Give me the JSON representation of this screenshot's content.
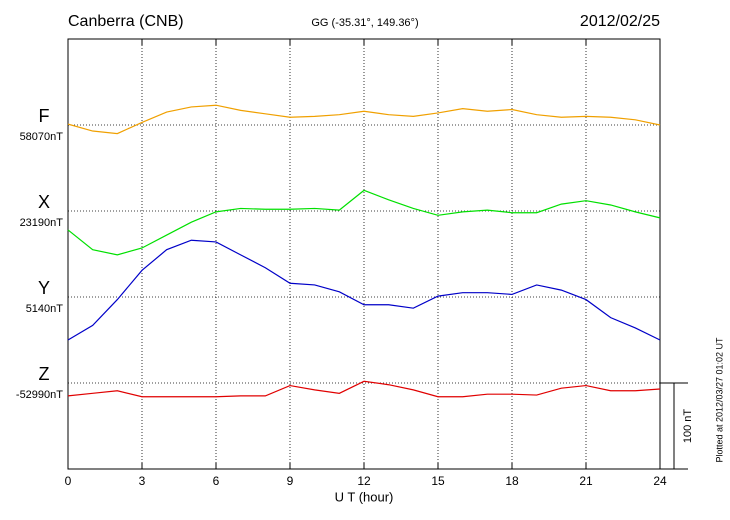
{
  "chart_data": {
    "type": "line",
    "title": "Canberra (CNB)",
    "subtitle": "GG (-35.31°, 149.36°)",
    "date": "2012/02/25",
    "xlabel": "U T (hour)",
    "side_note": "Plotted at 2012/03/27 01:02 UT",
    "scale_bar": {
      "value": 100,
      "label": "100 nT"
    },
    "xlim": [
      0,
      24
    ],
    "xticks": [
      0,
      3,
      6,
      9,
      12,
      15,
      18,
      21,
      24
    ],
    "grid": true,
    "x": [
      0,
      1,
      2,
      3,
      4,
      5,
      6,
      7,
      8,
      9,
      10,
      11,
      12,
      13,
      14,
      15,
      16,
      17,
      18,
      19,
      20,
      21,
      22,
      23,
      24
    ],
    "series": [
      {
        "name": "F",
        "color": "#f0a000",
        "baseline": {
          "value": 58070,
          "label": "58070nT"
        },
        "values": [
          58071,
          58063,
          58060,
          58073,
          58085,
          58091,
          58093,
          58087,
          58083,
          58079,
          58080,
          58082,
          58086,
          58082,
          58080,
          58084,
          58089,
          58086,
          58088,
          58082,
          58079,
          58080,
          58079,
          58076,
          58070
        ]
      },
      {
        "name": "X",
        "color": "#00e000",
        "baseline": {
          "value": 23190,
          "label": "23190nT"
        },
        "values": [
          23168,
          23145,
          23139,
          23147,
          23162,
          23177,
          23189,
          23193,
          23192,
          23192,
          23193,
          23191,
          23214,
          23203,
          23193,
          23185,
          23189,
          23191,
          23188,
          23188,
          23198,
          23202,
          23197,
          23189,
          23182
        ]
      },
      {
        "name": "Y",
        "color": "#0000c8",
        "baseline": {
          "value": 5140,
          "label": "5140nT"
        },
        "values": [
          5090,
          5107,
          5137,
          5171,
          5195,
          5206,
          5204,
          5189,
          5174,
          5156,
          5154,
          5146,
          5131,
          5131,
          5127,
          5141,
          5145,
          5145,
          5143,
          5154,
          5148,
          5137,
          5116,
          5104,
          5090
        ]
      },
      {
        "name": "Z",
        "color": "#e00000",
        "baseline": {
          "value": -52990,
          "label": "-52990nT"
        },
        "values": [
          -53005,
          -53002,
          -52999,
          -53006,
          -53006,
          -53006,
          -53006,
          -53005,
          -53005,
          -52993,
          -52998,
          -53002,
          -52988,
          -52992,
          -52998,
          -53006,
          -53006,
          -53003,
          -53003,
          -53004,
          -52996,
          -52993,
          -52999,
          -52999,
          -52997
        ]
      }
    ]
  }
}
